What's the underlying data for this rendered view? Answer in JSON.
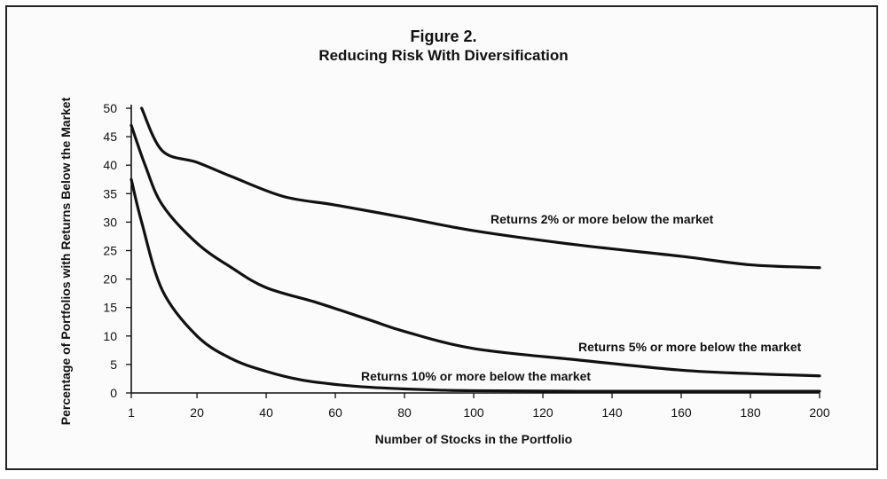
{
  "title": "Figure 2.",
  "subtitle": "Reducing Risk With Diversification",
  "chart_data": {
    "type": "line",
    "title": "Figure 2.",
    "subtitle": "Reducing Risk With Diversification",
    "xlabel": "Number of Stocks in the Portfolio",
    "ylabel": "Percentage of Portfolios with Returns Below the Market",
    "xlim": [
      1,
      200
    ],
    "ylim": [
      0,
      50
    ],
    "x_ticks": [
      1,
      20,
      40,
      60,
      80,
      100,
      120,
      140,
      160,
      180,
      200
    ],
    "y_ticks": [
      0,
      5,
      10,
      15,
      20,
      25,
      30,
      35,
      40,
      45,
      50
    ],
    "grid": false,
    "series": [
      {
        "name": "Returns 2% or more below the market",
        "x": [
          4,
          10,
          20,
          30,
          45,
          60,
          80,
          100,
          130,
          160,
          180,
          200
        ],
        "y": [
          50,
          42.5,
          40.5,
          38,
          34.5,
          33,
          30.8,
          28.5,
          26,
          24,
          22.5,
          22
        ]
      },
      {
        "name": "Returns 5% or more below the market",
        "x": [
          1,
          5,
          10,
          20,
          30,
          40,
          55,
          70,
          80,
          100,
          130,
          160,
          180,
          200
        ],
        "y": [
          47,
          40,
          33,
          26.3,
          22,
          18.5,
          15.8,
          12.8,
          10.8,
          7.8,
          5.8,
          4,
          3.4,
          3
        ]
      },
      {
        "name": "Returns 10% or more below the market",
        "x": [
          1,
          4,
          10,
          20,
          30,
          40,
          50,
          60,
          70,
          80,
          90,
          100,
          130,
          160,
          200
        ],
        "y": [
          37.5,
          30,
          18,
          10,
          6,
          3.8,
          2.3,
          1.5,
          1,
          0.7,
          0.5,
          0.4,
          0.3,
          0.3,
          0.3
        ]
      }
    ]
  }
}
